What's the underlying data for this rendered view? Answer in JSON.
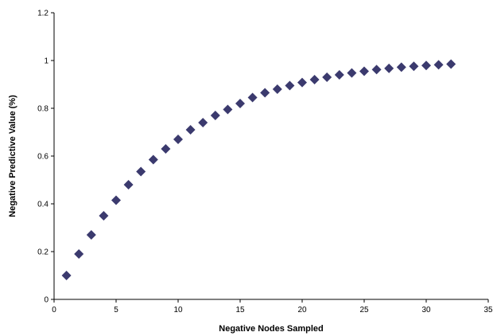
{
  "chart_data": {
    "type": "scatter",
    "title": "",
    "xlabel": "Negative Nodes Sampled",
    "ylabel": "Negative Predictive Value (%)",
    "xlim": [
      0,
      35
    ],
    "ylim": [
      0,
      1.2
    ],
    "x_ticks": [
      0,
      5,
      10,
      15,
      20,
      25,
      30,
      35
    ],
    "y_ticks": [
      0,
      0.2,
      0.4,
      0.6,
      0.8,
      1,
      1.2
    ],
    "x_tick_labels": [
      "0",
      "5",
      "10",
      "15",
      "20",
      "25",
      "30",
      "35"
    ],
    "y_tick_labels": [
      "0",
      "0.2",
      "0.4",
      "0.6",
      "0.8",
      "1",
      "1.2"
    ],
    "grid": false,
    "legend": "none",
    "marker": "diamond",
    "marker_color": "#3b3a6e",
    "series": [
      {
        "x": [
          1,
          2,
          3,
          4,
          5,
          6,
          7,
          8,
          9,
          10,
          11,
          12,
          13,
          14,
          15,
          16,
          17,
          18,
          19,
          20,
          21,
          22,
          23,
          24,
          25,
          26,
          27,
          28,
          29,
          30,
          31,
          32
        ],
        "values": [
          0.1,
          0.19,
          0.27,
          0.35,
          0.415,
          0.48,
          0.535,
          0.585,
          0.63,
          0.67,
          0.71,
          0.74,
          0.77,
          0.795,
          0.82,
          0.845,
          0.865,
          0.88,
          0.895,
          0.908,
          0.92,
          0.93,
          0.94,
          0.948,
          0.955,
          0.962,
          0.967,
          0.972,
          0.976,
          0.979,
          0.982,
          0.985
        ]
      }
    ]
  }
}
